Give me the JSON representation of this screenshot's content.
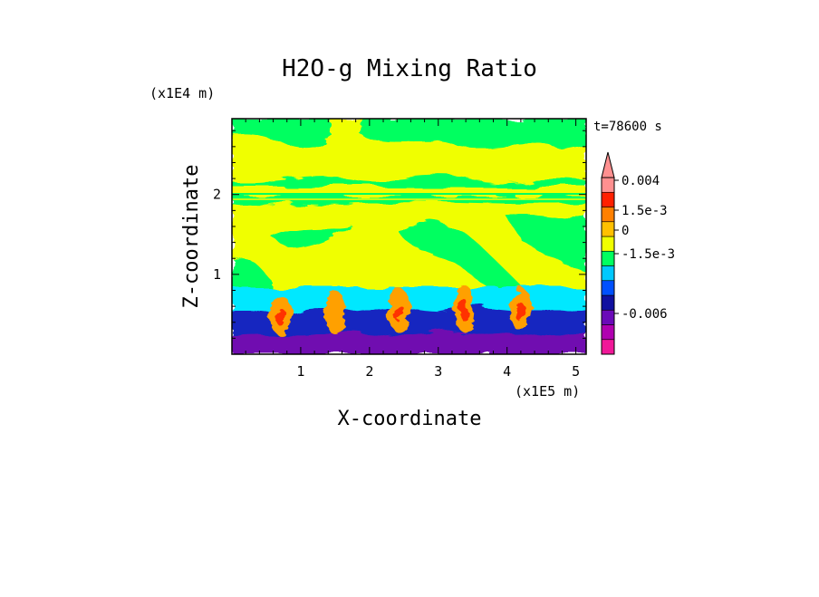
{
  "chart_data": {
    "type": "heatmap",
    "title": "H2O-g Mixing Ratio",
    "time_label": "t=78600 s",
    "xlabel": "X-coordinate",
    "ylabel": "Z-coordinate",
    "x_unit": "(x1E5 m)",
    "y_unit": "(x1E4 m)",
    "x_ticks": [
      "1",
      "2",
      "3",
      "4",
      "5"
    ],
    "y_ticks": [
      "1",
      "2"
    ],
    "xlim": [
      0,
      5.15
    ],
    "ylim": [
      0,
      2.95
    ],
    "colorbar": {
      "labels": [
        "0.004",
        "1.5e-3",
        "0",
        "-1.5e-3",
        "-0.006"
      ],
      "colors": [
        "#f01898",
        "#b000b0",
        "#6a0ab8",
        "#1010a0",
        "#0050ff",
        "#00c8ff",
        "#00ff60",
        "#f0ff00",
        "#ffc000",
        "#ff8000",
        "#ff2000",
        "#ff9090"
      ]
    },
    "field_description_colors": {
      "upper_background": "#00ff60",
      "mid_layer": "#f0ff00",
      "low_cyan": "#00e8ff",
      "low_blue": "#1828c0",
      "low_purple": "#7010b0",
      "plume_orange": "#ffa000",
      "plume_red": "#ff3000"
    }
  }
}
